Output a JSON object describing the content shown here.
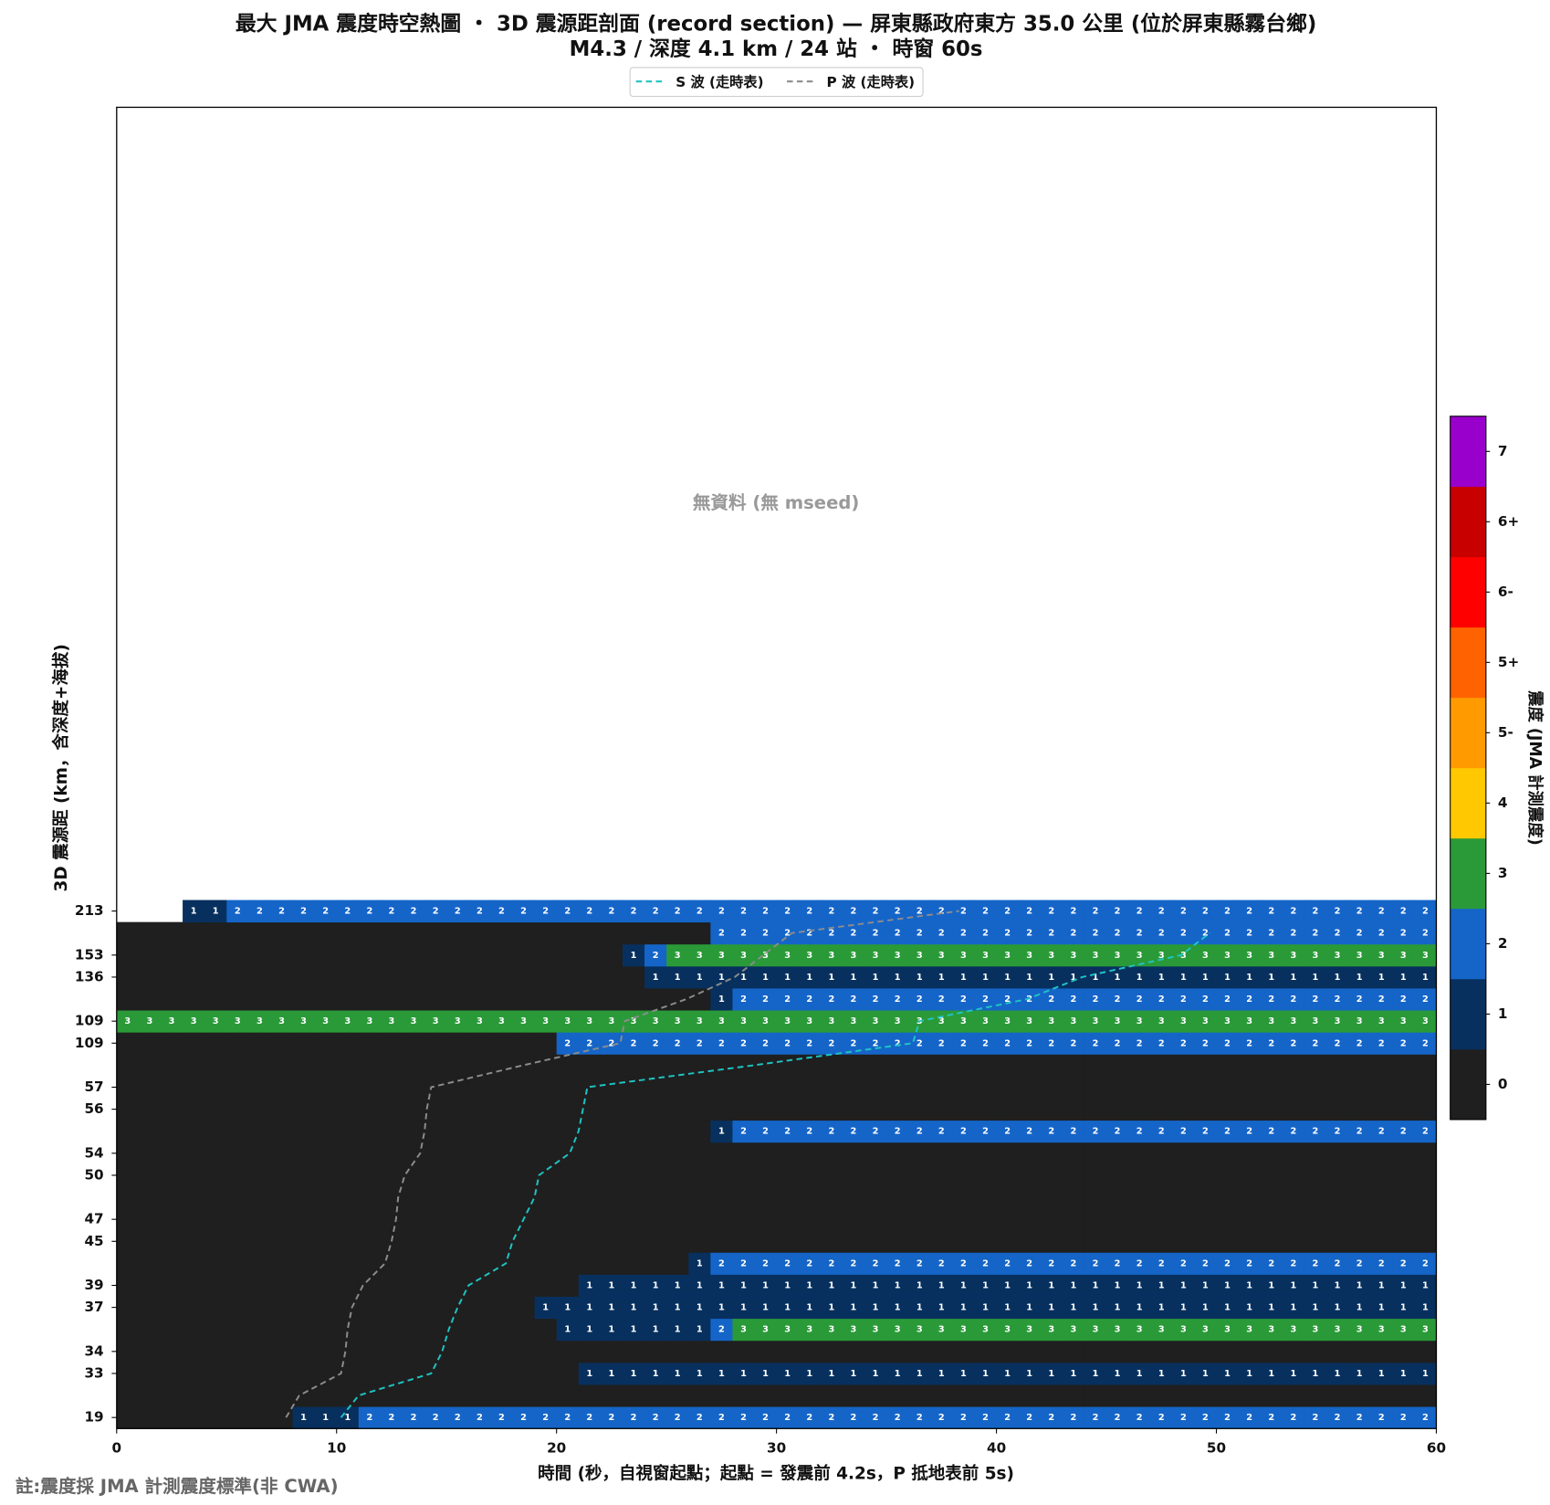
{
  "chart_data": {
    "type": "heatmap",
    "title": "最大 JMA 震度時空熱圖 ・ 3D 震源距剖面 (record section) — 屏東縣政府東方  35.0  公里 (位於屏東縣霧台鄉)",
    "subtitle": "M4.3 / 深度 4.1 km / 24 站 ・ 時窗 60s",
    "x_label": "時間 (秒，自視窗起點；起點 = 發震前 4.2s，P 抵地表前 5s)",
    "y_label": "3D 震源距 (km，含深度+海拔)",
    "annotation": "無資料 (無 mseed)",
    "footnote": "註:震度採 JMA 計測震度標準(非 CWA)",
    "xlim": [
      0,
      60
    ],
    "xticks": [
      0,
      10,
      20,
      30,
      40,
      50,
      60
    ],
    "ylim": [
      -0.5,
      59.5
    ],
    "bins": [
      0,
      1,
      2,
      3,
      4,
      5,
      6,
      7,
      8,
      9,
      10,
      11,
      12,
      13,
      14,
      15,
      16,
      17,
      18,
      19,
      20,
      21,
      22,
      23,
      24,
      25,
      26,
      27,
      28,
      29,
      30,
      31,
      32,
      33,
      34,
      35,
      36,
      37,
      38,
      39,
      40,
      41,
      42,
      43,
      44,
      45,
      46,
      47,
      48,
      49,
      50,
      51,
      52,
      53,
      54,
      55,
      56,
      57,
      58,
      59,
      60
    ],
    "categories": [
      "19",
      null,
      "33",
      "34",
      null,
      "37",
      "39",
      null,
      "45",
      "47",
      null,
      "50",
      "54",
      null,
      "56",
      "57",
      null,
      "109",
      "109",
      null,
      "136",
      "153",
      null,
      "213"
    ],
    "values": [
      [
        0,
        0,
        0,
        0,
        0,
        0,
        0,
        0,
        1,
        1,
        1,
        2,
        2,
        2,
        2,
        2,
        2,
        2,
        2,
        2,
        2,
        2,
        2,
        2,
        2,
        2,
        2,
        2,
        2,
        2,
        2,
        2,
        2,
        2,
        2,
        2,
        2,
        2,
        2,
        2,
        2,
        2,
        2,
        2,
        2,
        2,
        2,
        2,
        2,
        2,
        2,
        2,
        2,
        2,
        2,
        2,
        2,
        2,
        2,
        2
      ],
      [
        0,
        0,
        0,
        0,
        0,
        0,
        0,
        0,
        0,
        0,
        0,
        0,
        0,
        0,
        0,
        0,
        0,
        0,
        0,
        0,
        0,
        0,
        0,
        0,
        0,
        0,
        0,
        0,
        0,
        0,
        0,
        0,
        0,
        0,
        0,
        0,
        0,
        0,
        0,
        0,
        0,
        0,
        0,
        0,
        0,
        0,
        0,
        0,
        0,
        0,
        0,
        0,
        0,
        0,
        0,
        0,
        0,
        0,
        0,
        0
      ],
      [
        0,
        0,
        0,
        0,
        0,
        0,
        0,
        0,
        0,
        0,
        0,
        0,
        0,
        0,
        0,
        0,
        0,
        0,
        0,
        0,
        0,
        1,
        1,
        1,
        1,
        1,
        1,
        1,
        1,
        1,
        1,
        1,
        1,
        1,
        1,
        1,
        1,
        1,
        1,
        1,
        1,
        1,
        1,
        1,
        1,
        1,
        1,
        1,
        1,
        1,
        1,
        1,
        1,
        1,
        1,
        1,
        1,
        1,
        1,
        1
      ],
      [
        0,
        0,
        0,
        0,
        0,
        0,
        0,
        0,
        0,
        0,
        0,
        0,
        0,
        0,
        0,
        0,
        0,
        0,
        0,
        0,
        0,
        0,
        0,
        0,
        0,
        0,
        0,
        0,
        0,
        0,
        0,
        0,
        0,
        0,
        0,
        0,
        0,
        0,
        0,
        0,
        0,
        0,
        0,
        0,
        0,
        0,
        0,
        0,
        0,
        0,
        0,
        0,
        0,
        0,
        0,
        0,
        0,
        0,
        0,
        0
      ],
      [
        0,
        0,
        0,
        0,
        0,
        0,
        0,
        0,
        0,
        0,
        0,
        0,
        0,
        0,
        0,
        0,
        0,
        0,
        0,
        0,
        1,
        1,
        1,
        1,
        1,
        1,
        1,
        2,
        3,
        3,
        3,
        3,
        3,
        3,
        3,
        3,
        3,
        3,
        3,
        3,
        3,
        3,
        3,
        3,
        3,
        3,
        3,
        3,
        3,
        3,
        3,
        3,
        3,
        3,
        3,
        3,
        3,
        3,
        3,
        3
      ],
      [
        0,
        0,
        0,
        0,
        0,
        0,
        0,
        0,
        0,
        0,
        0,
        0,
        0,
        0,
        0,
        0,
        0,
        0,
        0,
        1,
        1,
        1,
        1,
        1,
        1,
        1,
        1,
        1,
        1,
        1,
        1,
        1,
        1,
        1,
        1,
        1,
        1,
        1,
        1,
        1,
        1,
        1,
        1,
        1,
        1,
        1,
        1,
        1,
        1,
        1,
        1,
        1,
        1,
        1,
        1,
        1,
        1,
        1,
        1,
        1
      ],
      [
        0,
        0,
        0,
        0,
        0,
        0,
        0,
        0,
        0,
        0,
        0,
        0,
        0,
        0,
        0,
        0,
        0,
        0,
        0,
        0,
        0,
        1,
        1,
        1,
        1,
        1,
        1,
        1,
        1,
        1,
        1,
        1,
        1,
        1,
        1,
        1,
        1,
        1,
        1,
        1,
        1,
        1,
        1,
        1,
        1,
        1,
        1,
        1,
        1,
        1,
        1,
        1,
        1,
        1,
        1,
        1,
        1,
        1,
        1,
        1
      ],
      [
        0,
        0,
        0,
        0,
        0,
        0,
        0,
        0,
        0,
        0,
        0,
        0,
        0,
        0,
        0,
        0,
        0,
        0,
        0,
        0,
        0,
        0,
        0,
        0,
        0,
        0,
        1,
        2,
        2,
        2,
        2,
        2,
        2,
        2,
        2,
        2,
        2,
        2,
        2,
        2,
        2,
        2,
        2,
        2,
        2,
        2,
        2,
        2,
        2,
        2,
        2,
        2,
        2,
        2,
        2,
        2,
        2,
        2,
        2,
        2
      ],
      [
        0,
        0,
        0,
        0,
        0,
        0,
        0,
        0,
        0,
        0,
        0,
        0,
        0,
        0,
        0,
        0,
        0,
        0,
        0,
        0,
        0,
        0,
        0,
        0,
        0,
        0,
        0,
        0,
        0,
        0,
        0,
        0,
        0,
        0,
        0,
        0,
        0,
        0,
        0,
        0,
        0,
        0,
        0,
        0,
        0,
        0,
        0,
        0,
        0,
        0,
        0,
        0,
        0,
        0,
        0,
        0,
        0,
        0,
        0,
        0
      ],
      [
        0,
        0,
        0,
        0,
        0,
        0,
        0,
        0,
        0,
        0,
        0,
        0,
        0,
        0,
        0,
        0,
        0,
        0,
        0,
        0,
        0,
        0,
        0,
        0,
        0,
        0,
        0,
        0,
        0,
        0,
        0,
        0,
        0,
        0,
        0,
        0,
        0,
        0,
        0,
        0,
        0,
        0,
        0,
        0,
        0,
        0,
        0,
        0,
        0,
        0,
        0,
        0,
        0,
        0,
        0,
        0,
        0,
        0,
        0,
        0
      ],
      [
        0,
        0,
        0,
        0,
        0,
        0,
        0,
        0,
        0,
        0,
        0,
        0,
        0,
        0,
        0,
        0,
        0,
        0,
        0,
        0,
        0,
        0,
        0,
        0,
        0,
        0,
        0,
        0,
        0,
        0,
        0,
        0,
        0,
        0,
        0,
        0,
        0,
        0,
        0,
        0,
        0,
        0,
        0,
        0,
        0,
        0,
        0,
        0,
        0,
        0,
        0,
        0,
        0,
        0,
        0,
        0,
        0,
        0,
        0,
        0
      ],
      [
        0,
        0,
        0,
        0,
        0,
        0,
        0,
        0,
        0,
        0,
        0,
        0,
        0,
        0,
        0,
        0,
        0,
        0,
        0,
        0,
        0,
        0,
        0,
        0,
        0,
        0,
        0,
        0,
        0,
        0,
        0,
        0,
        0,
        0,
        0,
        0,
        0,
        0,
        0,
        0,
        0,
        0,
        0,
        0,
        0,
        0,
        0,
        0,
        0,
        0,
        0,
        0,
        0,
        0,
        0,
        0,
        0,
        0,
        0,
        0
      ],
      [
        0,
        0,
        0,
        0,
        0,
        0,
        0,
        0,
        0,
        0,
        0,
        0,
        0,
        0,
        0,
        0,
        0,
        0,
        0,
        0,
        0,
        0,
        0,
        0,
        0,
        0,
        0,
        0,
        0,
        0,
        0,
        0,
        0,
        0,
        0,
        0,
        0,
        0,
        0,
        0,
        0,
        0,
        0,
        0,
        0,
        0,
        0,
        0,
        0,
        0,
        0,
        0,
        0,
        0,
        0,
        0,
        0,
        0,
        0,
        0
      ],
      [
        0,
        0,
        0,
        0,
        0,
        0,
        0,
        0,
        0,
        0,
        0,
        0,
        0,
        0,
        0,
        0,
        0,
        0,
        0,
        0,
        0,
        0,
        0,
        0,
        0,
        0,
        0,
        1,
        2,
        2,
        2,
        2,
        2,
        2,
        2,
        2,
        2,
        2,
        2,
        2,
        2,
        2,
        2,
        2,
        2,
        2,
        2,
        2,
        2,
        2,
        2,
        2,
        2,
        2,
        2,
        2,
        2,
        2,
        2,
        2
      ],
      [
        0,
        0,
        0,
        0,
        0,
        0,
        0,
        0,
        0,
        0,
        0,
        0,
        0,
        0,
        0,
        0,
        0,
        0,
        0,
        0,
        0,
        0,
        0,
        0,
        0,
        0,
        0,
        0,
        0,
        0,
        0,
        0,
        0,
        0,
        0,
        0,
        0,
        0,
        0,
        0,
        0,
        0,
        0,
        0,
        0,
        0,
        0,
        0,
        0,
        0,
        0,
        0,
        0,
        0,
        0,
        0,
        0,
        0,
        0,
        0
      ],
      [
        0,
        0,
        0,
        0,
        0,
        0,
        0,
        0,
        0,
        0,
        0,
        0,
        0,
        0,
        0,
        0,
        0,
        0,
        0,
        0,
        0,
        0,
        0,
        0,
        0,
        0,
        0,
        0,
        0,
        0,
        0,
        0,
        0,
        0,
        0,
        0,
        0,
        0,
        0,
        0,
        0,
        0,
        0,
        0,
        0,
        0,
        0,
        0,
        0,
        0,
        0,
        0,
        0,
        0,
        0,
        0,
        0,
        0,
        0,
        0
      ],
      [
        0,
        0,
        0,
        0,
        0,
        0,
        0,
        0,
        0,
        0,
        0,
        0,
        0,
        0,
        0,
        0,
        0,
        0,
        0,
        0,
        0,
        0,
        0,
        0,
        0,
        0,
        0,
        0,
        0,
        0,
        0,
        0,
        0,
        0,
        0,
        0,
        0,
        0,
        0,
        0,
        0,
        0,
        0,
        0,
        0,
        0,
        0,
        0,
        0,
        0,
        0,
        0,
        0,
        0,
        0,
        0,
        0,
        0,
        0,
        0
      ],
      [
        0,
        0,
        0,
        0,
        0,
        0,
        0,
        0,
        0,
        0,
        0,
        0,
        0,
        0,
        0,
        0,
        0,
        0,
        0,
        0,
        2,
        2,
        2,
        2,
        2,
        2,
        2,
        2,
        2,
        2,
        2,
        2,
        2,
        2,
        2,
        2,
        2,
        2,
        2,
        2,
        2,
        2,
        2,
        2,
        2,
        2,
        2,
        2,
        2,
        2,
        2,
        2,
        2,
        2,
        2,
        2,
        2,
        2,
        2,
        2
      ],
      [
        3,
        3,
        3,
        3,
        3,
        3,
        3,
        3,
        3,
        3,
        3,
        3,
        3,
        3,
        3,
        3,
        3,
        3,
        3,
        3,
        3,
        3,
        3,
        3,
        3,
        3,
        3,
        3,
        3,
        3,
        3,
        3,
        3,
        3,
        3,
        3,
        3,
        3,
        3,
        3,
        3,
        3,
        3,
        3,
        3,
        3,
        3,
        3,
        3,
        3,
        3,
        3,
        3,
        3,
        3,
        3,
        3,
        3,
        3,
        3
      ],
      [
        0,
        0,
        0,
        0,
        0,
        0,
        0,
        0,
        0,
        0,
        0,
        0,
        0,
        0,
        0,
        0,
        0,
        0,
        0,
        0,
        0,
        0,
        0,
        0,
        0,
        0,
        0,
        1,
        2,
        2,
        2,
        2,
        2,
        2,
        2,
        2,
        2,
        2,
        2,
        2,
        2,
        2,
        2,
        2,
        2,
        2,
        2,
        2,
        2,
        2,
        2,
        2,
        2,
        2,
        2,
        2,
        2,
        2,
        2,
        2
      ],
      [
        0,
        0,
        0,
        0,
        0,
        0,
        0,
        0,
        0,
        0,
        0,
        0,
        0,
        0,
        0,
        0,
        0,
        0,
        0,
        0,
        0,
        0,
        0,
        0,
        1,
        1,
        1,
        1,
        1,
        1,
        1,
        1,
        1,
        1,
        1,
        1,
        1,
        1,
        1,
        1,
        1,
        1,
        1,
        1,
        1,
        1,
        1,
        1,
        1,
        1,
        1,
        1,
        1,
        1,
        1,
        1,
        1,
        1,
        1,
        1
      ],
      [
        0,
        0,
        0,
        0,
        0,
        0,
        0,
        0,
        0,
        0,
        0,
        0,
        0,
        0,
        0,
        0,
        0,
        0,
        0,
        0,
        0,
        0,
        0,
        1,
        2,
        3,
        3,
        3,
        3,
        3,
        3,
        3,
        3,
        3,
        3,
        3,
        3,
        3,
        3,
        3,
        3,
        3,
        3,
        3,
        3,
        3,
        3,
        3,
        3,
        3,
        3,
        3,
        3,
        3,
        3,
        3,
        3,
        3,
        3,
        3
      ],
      [
        0,
        0,
        0,
        0,
        0,
        0,
        0,
        0,
        0,
        0,
        0,
        0,
        0,
        0,
        0,
        0,
        0,
        0,
        0,
        0,
        0,
        0,
        0,
        0,
        0,
        0,
        0,
        2,
        2,
        2,
        2,
        2,
        2,
        2,
        2,
        2,
        2,
        2,
        2,
        2,
        2,
        2,
        2,
        2,
        2,
        2,
        2,
        2,
        2,
        2,
        2,
        2,
        2,
        2,
        2,
        2,
        2,
        2,
        2,
        2
      ],
      [
        null,
        null,
        null,
        1,
        1,
        2,
        2,
        2,
        2,
        2,
        2,
        2,
        2,
        2,
        2,
        2,
        2,
        2,
        2,
        2,
        2,
        2,
        2,
        2,
        2,
        2,
        2,
        2,
        2,
        2,
        2,
        2,
        2,
        2,
        2,
        2,
        2,
        2,
        2,
        2,
        2,
        2,
        2,
        2,
        2,
        2,
        2,
        2,
        2,
        2,
        2,
        2,
        2,
        2,
        2,
        2,
        2,
        2,
        2,
        2
      ]
    ],
    "lines": [
      {
        "name": "S 波 (走時表)",
        "color": "#1fc4c4",
        "values": [
          10.2,
          11.0,
          14.3,
          14.8,
          15.1,
          15.5,
          16.0,
          17.7,
          18.0,
          18.5,
          19.0,
          19.2,
          20.6,
          21.0,
          21.2,
          21.4,
          29.0,
          36.2,
          36.5,
          41.4,
          43.9,
          48.4,
          49.7,
          null
        ]
      },
      {
        "name": "P 波 (走時表)",
        "color": "#8c8c8c",
        "values": [
          7.7,
          8.3,
          10.2,
          10.4,
          10.5,
          10.7,
          11.2,
          12.2,
          12.5,
          12.7,
          12.8,
          13.1,
          13.8,
          14.0,
          14.1,
          14.3,
          18.5,
          22.9,
          23.1,
          25.9,
          28.1,
          29.4,
          30.7,
          38.3
        ]
      }
    ],
    "legend": "upper center",
    "colorbar": {
      "label": "震度 (JMA 計測震度)",
      "levels": [
        {
          "label": "0",
          "color": "#1f1f1f"
        },
        {
          "label": "1",
          "color": "#08305e"
        },
        {
          "label": "2",
          "color": "#1565c8"
        },
        {
          "label": "3",
          "color": "#2a9a38"
        },
        {
          "label": "4",
          "color": "#ffc800"
        },
        {
          "label": "5-",
          "color": "#ff9a00"
        },
        {
          "label": "5+",
          "color": "#ff6200"
        },
        {
          "label": "6-",
          "color": "#ff0000"
        },
        {
          "label": "6+",
          "color": "#c80000"
        },
        {
          "label": "7",
          "color": "#9a00cc"
        }
      ]
    }
  }
}
